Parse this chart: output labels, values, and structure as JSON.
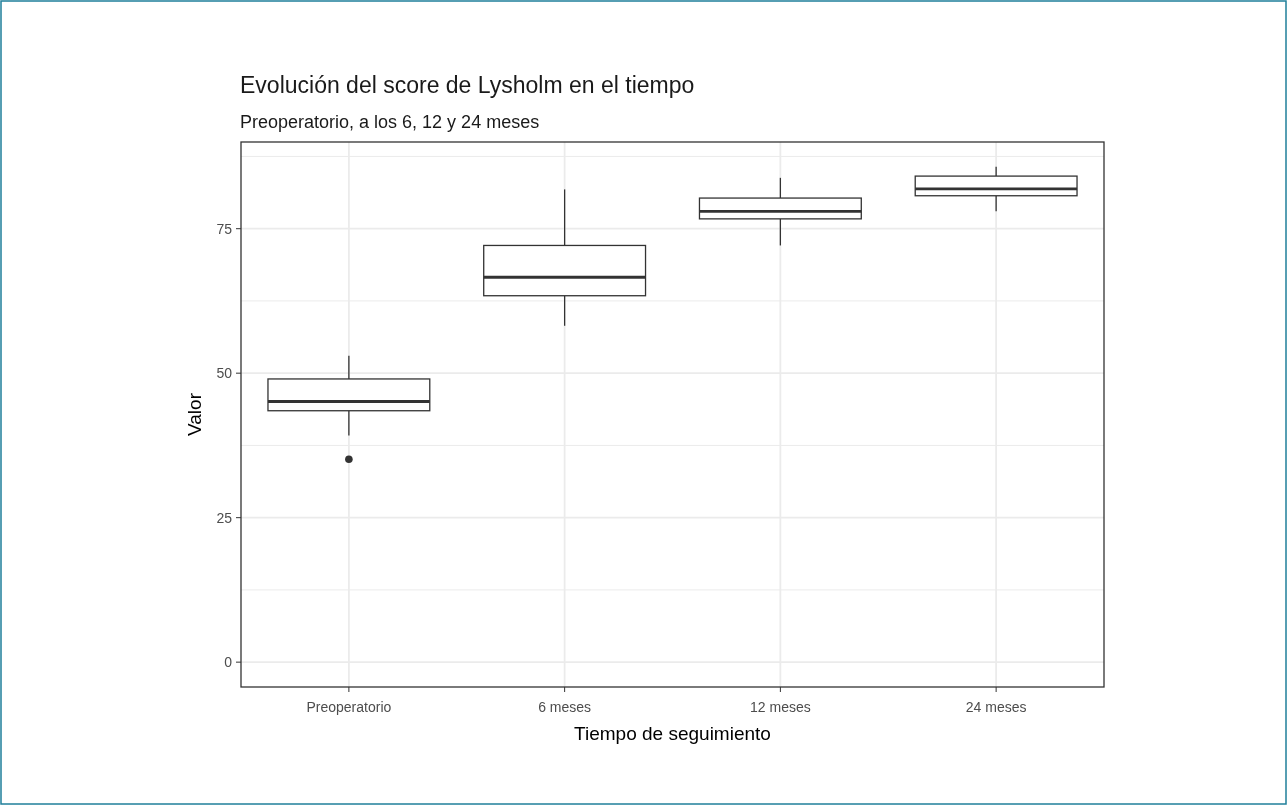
{
  "chart_data": {
    "type": "box",
    "title": "Evolución del score de Lysholm en el tiempo",
    "subtitle": "Preoperatorio, a los 6, 12 y 24 meses",
    "xlabel": "Tiempo de seguimiento",
    "ylabel": "Valor",
    "categories": [
      "Preoperatorio",
      "6 meses",
      "12 meses",
      "24 meses"
    ],
    "boxes": [
      {
        "low": 39.2,
        "q1": 43.5,
        "median": 45.1,
        "q3": 49.0,
        "high": 53.0,
        "outliers": [
          35.1
        ]
      },
      {
        "low": 58.2,
        "q1": 63.4,
        "median": 66.6,
        "q3": 72.1,
        "high": 81.8
      },
      {
        "low": 72.1,
        "q1": 76.7,
        "median": 78.0,
        "q3": 80.3,
        "high": 83.8
      },
      {
        "low": 78.0,
        "q1": 80.7,
        "median": 81.9,
        "q3": 84.1,
        "high": 85.7
      }
    ],
    "color": "#333333",
    "ylim": [
      -4.3,
      90
    ],
    "yticks": [
      0,
      25,
      50,
      75
    ],
    "grid": true
  }
}
